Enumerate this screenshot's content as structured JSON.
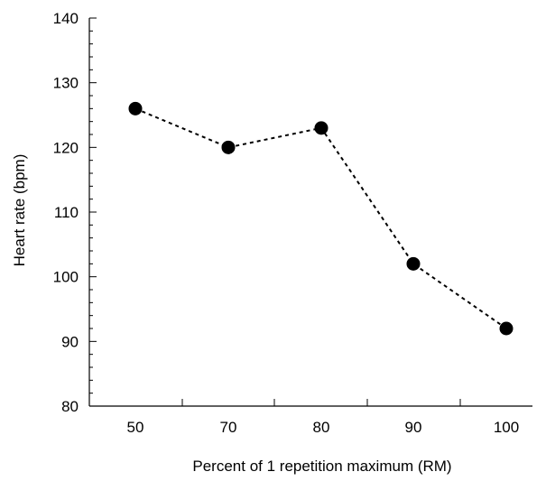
{
  "chart_data": {
    "type": "line",
    "categories": [
      "50",
      "70",
      "80",
      "90",
      "100"
    ],
    "values": [
      126,
      120,
      123,
      102,
      92
    ],
    "title": "",
    "xlabel": "Percent of 1 repetition maximum (RM)",
    "ylabel": "Heart rate (bpm)",
    "ylim": [
      80,
      140
    ],
    "yticks": [
      "80",
      "90",
      "100",
      "110",
      "120",
      "130",
      "140"
    ],
    "ymajor_step": 10,
    "yminor_step": 2,
    "grid": false,
    "legend": "none",
    "line_style": "dashed",
    "marker": "filled-circle",
    "colors": {
      "line": "#000000",
      "marker": "#000000",
      "axis": "#000000"
    }
  }
}
